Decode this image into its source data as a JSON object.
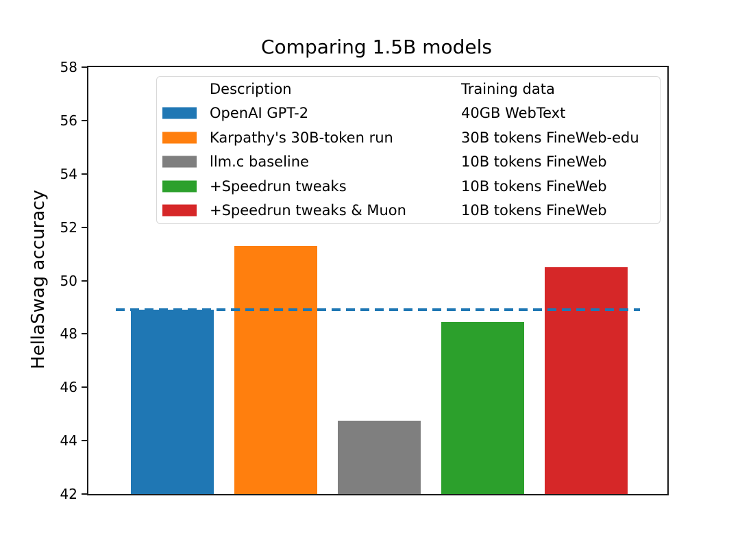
{
  "chart_data": {
    "type": "bar",
    "title": "Comparing 1.5B models",
    "xlabel": "",
    "ylabel": "HellaSwag accuracy",
    "ylim": [
      42,
      58
    ],
    "yticks": [
      42,
      44,
      46,
      48,
      50,
      52,
      54,
      56,
      58
    ],
    "xticks": [],
    "grid": false,
    "categories": [
      "OpenAI GPT-2",
      "Karpathy's 30B-token run",
      "llm.c baseline",
      "+Speedrun tweaks",
      "+Speedrun tweaks & Muon"
    ],
    "values": [
      48.9,
      51.3,
      44.75,
      48.45,
      50.5
    ],
    "bar_colors": [
      "#1f77b4",
      "#ff7f0e",
      "#7f7f7f",
      "#2ca02c",
      "#d62728"
    ],
    "reference_line": {
      "y": 48.9,
      "color": "#1f77b4",
      "style": "dashed"
    },
    "legend": {
      "position": "upper-left-inside",
      "column_headers": {
        "col1": "Description",
        "col2": "Training data"
      },
      "entries": [
        {
          "description": "OpenAI GPT-2",
          "training_data": "40GB WebText",
          "color": "#1f77b4"
        },
        {
          "description": "Karpathy's 30B-token run",
          "training_data": "30B tokens FineWeb-edu",
          "color": "#ff7f0e"
        },
        {
          "description": "llm.c baseline",
          "training_data": "10B tokens FineWeb",
          "color": "#7f7f7f"
        },
        {
          "description": "+Speedrun tweaks",
          "training_data": "10B tokens FineWeb",
          "color": "#2ca02c"
        },
        {
          "description": "+Speedrun tweaks & Muon",
          "training_data": "10B tokens FineWeb",
          "color": "#d62728"
        }
      ]
    }
  }
}
